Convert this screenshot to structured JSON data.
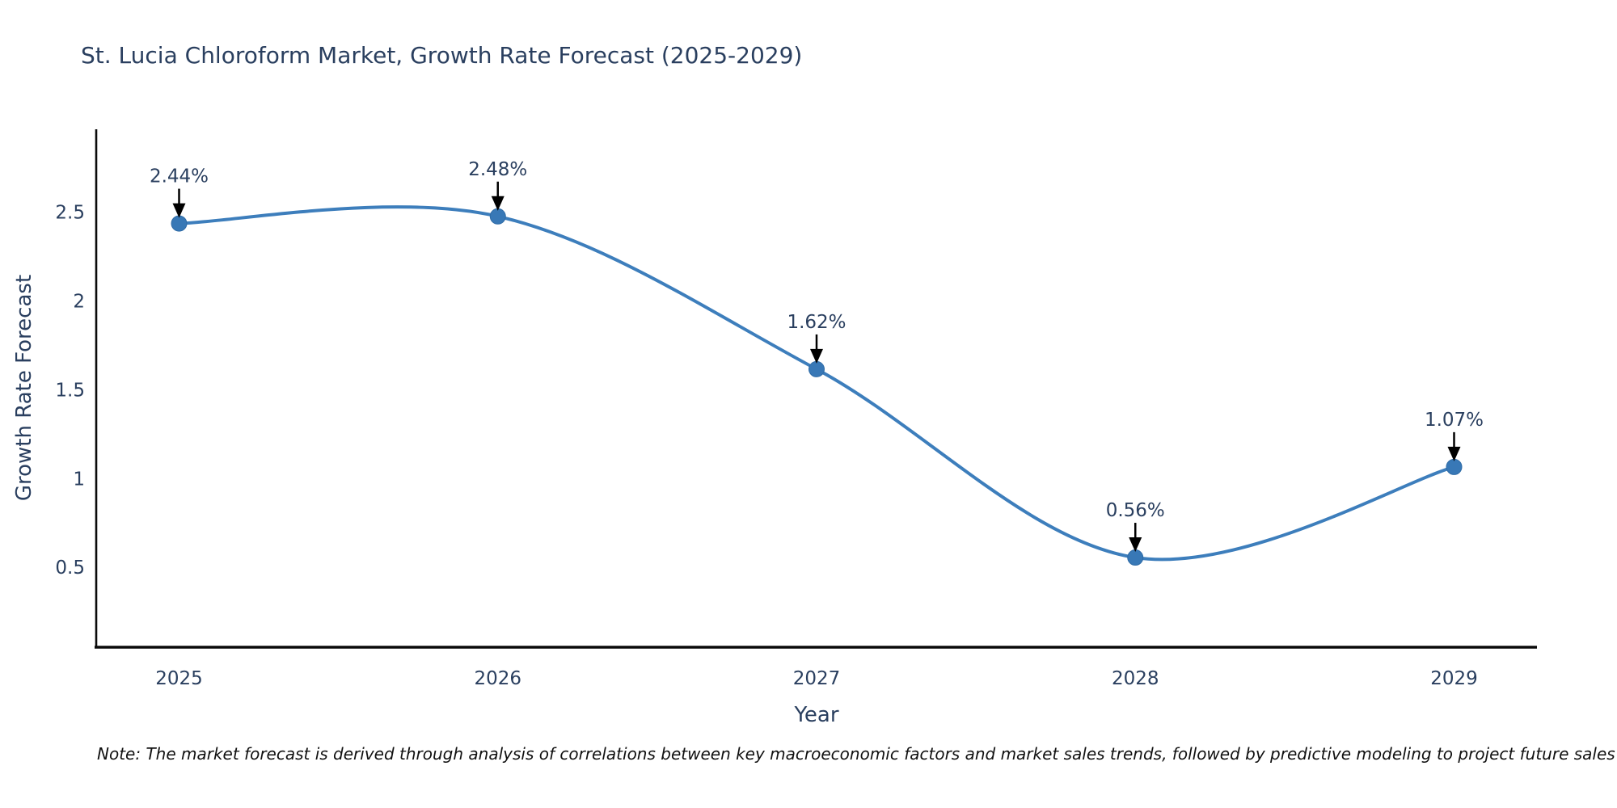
{
  "title": "St. Lucia Chloroform Market, Growth Rate Forecast (2025-2029)",
  "note": {
    "text": "Note: The market forecast is derived through analysis of correlations between key macroeconomic factors and market sales trends, followed by predictive modeling to project future sales"
  },
  "chart_data": {
    "type": "line",
    "title": "St. Lucia Chloroform Market, Growth Rate Forecast (2025-2029)",
    "x": [
      2025,
      2026,
      2027,
      2028,
      2029
    ],
    "series": [
      {
        "name": "Growth Rate Forecast",
        "values": [
          2.44,
          2.48,
          1.62,
          0.56,
          1.07
        ]
      }
    ],
    "point_labels": [
      "2.44%",
      "2.48%",
      "1.62%",
      "0.56%",
      "1.07%"
    ],
    "xlabel": "Year",
    "ylabel": "Growth Rate Forecast",
    "xticks": [
      "2025",
      "2026",
      "2027",
      "2028",
      "2029"
    ],
    "yticks": [
      0.5,
      1,
      1.5,
      2,
      2.5
    ],
    "xlim": [
      2024.74,
      2029.26
    ],
    "ylim": [
      0.06,
      2.97
    ],
    "grid": false,
    "legend": "none",
    "line_shape": "spline",
    "marker": "circle",
    "annotation_style": "label-with-down-arrow",
    "colors": {
      "line": "#3d7ebc",
      "marker_fill": "#3878b6",
      "marker_stroke": "#2f6ba6",
      "axis_line": "#0a0a0a",
      "tick_text": "#2a3f5f",
      "title_text": "#2a3f5f",
      "annotation_text": "#2a3f5f",
      "annotation_arrow": "#000000",
      "note_text": "#111111",
      "background": "#ffffff"
    }
  }
}
